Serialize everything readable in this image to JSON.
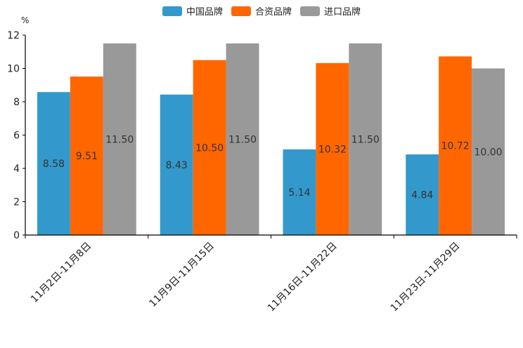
{
  "chart_data": {
    "type": "bar",
    "title": "",
    "unit": "%",
    "xlabel": "",
    "ylabel": "%",
    "ylim": [
      0,
      12
    ],
    "yticks": [
      0,
      2,
      4,
      6,
      8,
      10,
      12
    ],
    "grid": false,
    "legend_position": "top-center",
    "categories": [
      "11月2日-11月8日",
      "11月9日-11月15日",
      "11月16日-11月22日",
      "11月23日-11月29日"
    ],
    "series": [
      {
        "name": "中国品牌",
        "color": "#3399cc",
        "values": [
          8.58,
          8.43,
          5.14,
          4.84
        ],
        "labels": [
          "8.58",
          "8.43",
          "5.14",
          "4.84"
        ]
      },
      {
        "name": "合资品牌",
        "color": "#ff6600",
        "values": [
          9.51,
          10.5,
          10.32,
          10.72
        ],
        "labels": [
          "9.51",
          "10.50",
          "10.32",
          "10.72"
        ]
      },
      {
        "name": "进口品牌",
        "color": "#999999",
        "values": [
          11.5,
          11.5,
          11.5,
          10.0
        ],
        "labels": [
          "11.50",
          "11.50",
          "11.50",
          "10.00"
        ]
      }
    ]
  }
}
